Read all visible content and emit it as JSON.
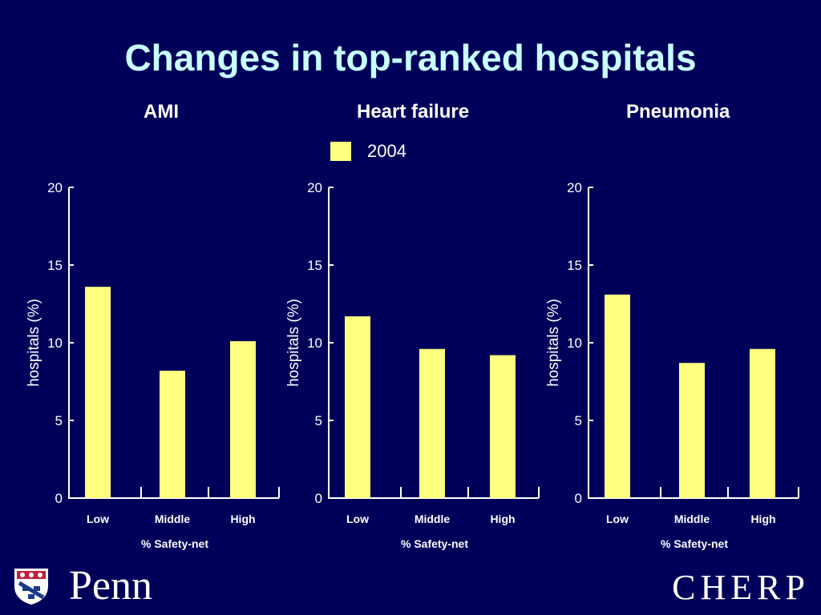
{
  "slide": {
    "title": "Changes in top-ranked hospitals",
    "legend": {
      "label": "2004",
      "color": "#ffff80"
    }
  },
  "chart_data": [
    {
      "type": "bar",
      "title": "AMI",
      "categories": [
        "Low",
        "Middle",
        "High"
      ],
      "series": [
        {
          "name": "2004",
          "values": [
            13.6,
            8.2,
            10.1
          ]
        }
      ],
      "ylabel": "hospitals (%)",
      "xlabel": "% Safety-net",
      "ylim": [
        0,
        20
      ],
      "yticks": [
        0,
        5,
        10,
        15,
        20
      ]
    },
    {
      "type": "bar",
      "title": "Heart failure",
      "categories": [
        "Low",
        "Middle",
        "High"
      ],
      "series": [
        {
          "name": "2004",
          "values": [
            11.7,
            9.6,
            9.2
          ]
        }
      ],
      "ylabel": "hospitals (%)",
      "xlabel": "% Safety-net",
      "ylim": [
        0,
        20
      ],
      "yticks": [
        0,
        5,
        10,
        15,
        20
      ]
    },
    {
      "type": "bar",
      "title": "Pneumonia",
      "categories": [
        "Low",
        "Middle",
        "High"
      ],
      "series": [
        {
          "name": "2004",
          "values": [
            13.1,
            8.7,
            9.6
          ]
        }
      ],
      "ylabel": "hospitals (%)",
      "xlabel": "% Safety-net",
      "ylim": [
        0,
        20
      ],
      "yticks": [
        0,
        5,
        10,
        15,
        20
      ]
    }
  ],
  "footer": {
    "left_logo": "Penn",
    "right_logo": "CHERP",
    "shield_icon": "penn-shield-icon"
  }
}
